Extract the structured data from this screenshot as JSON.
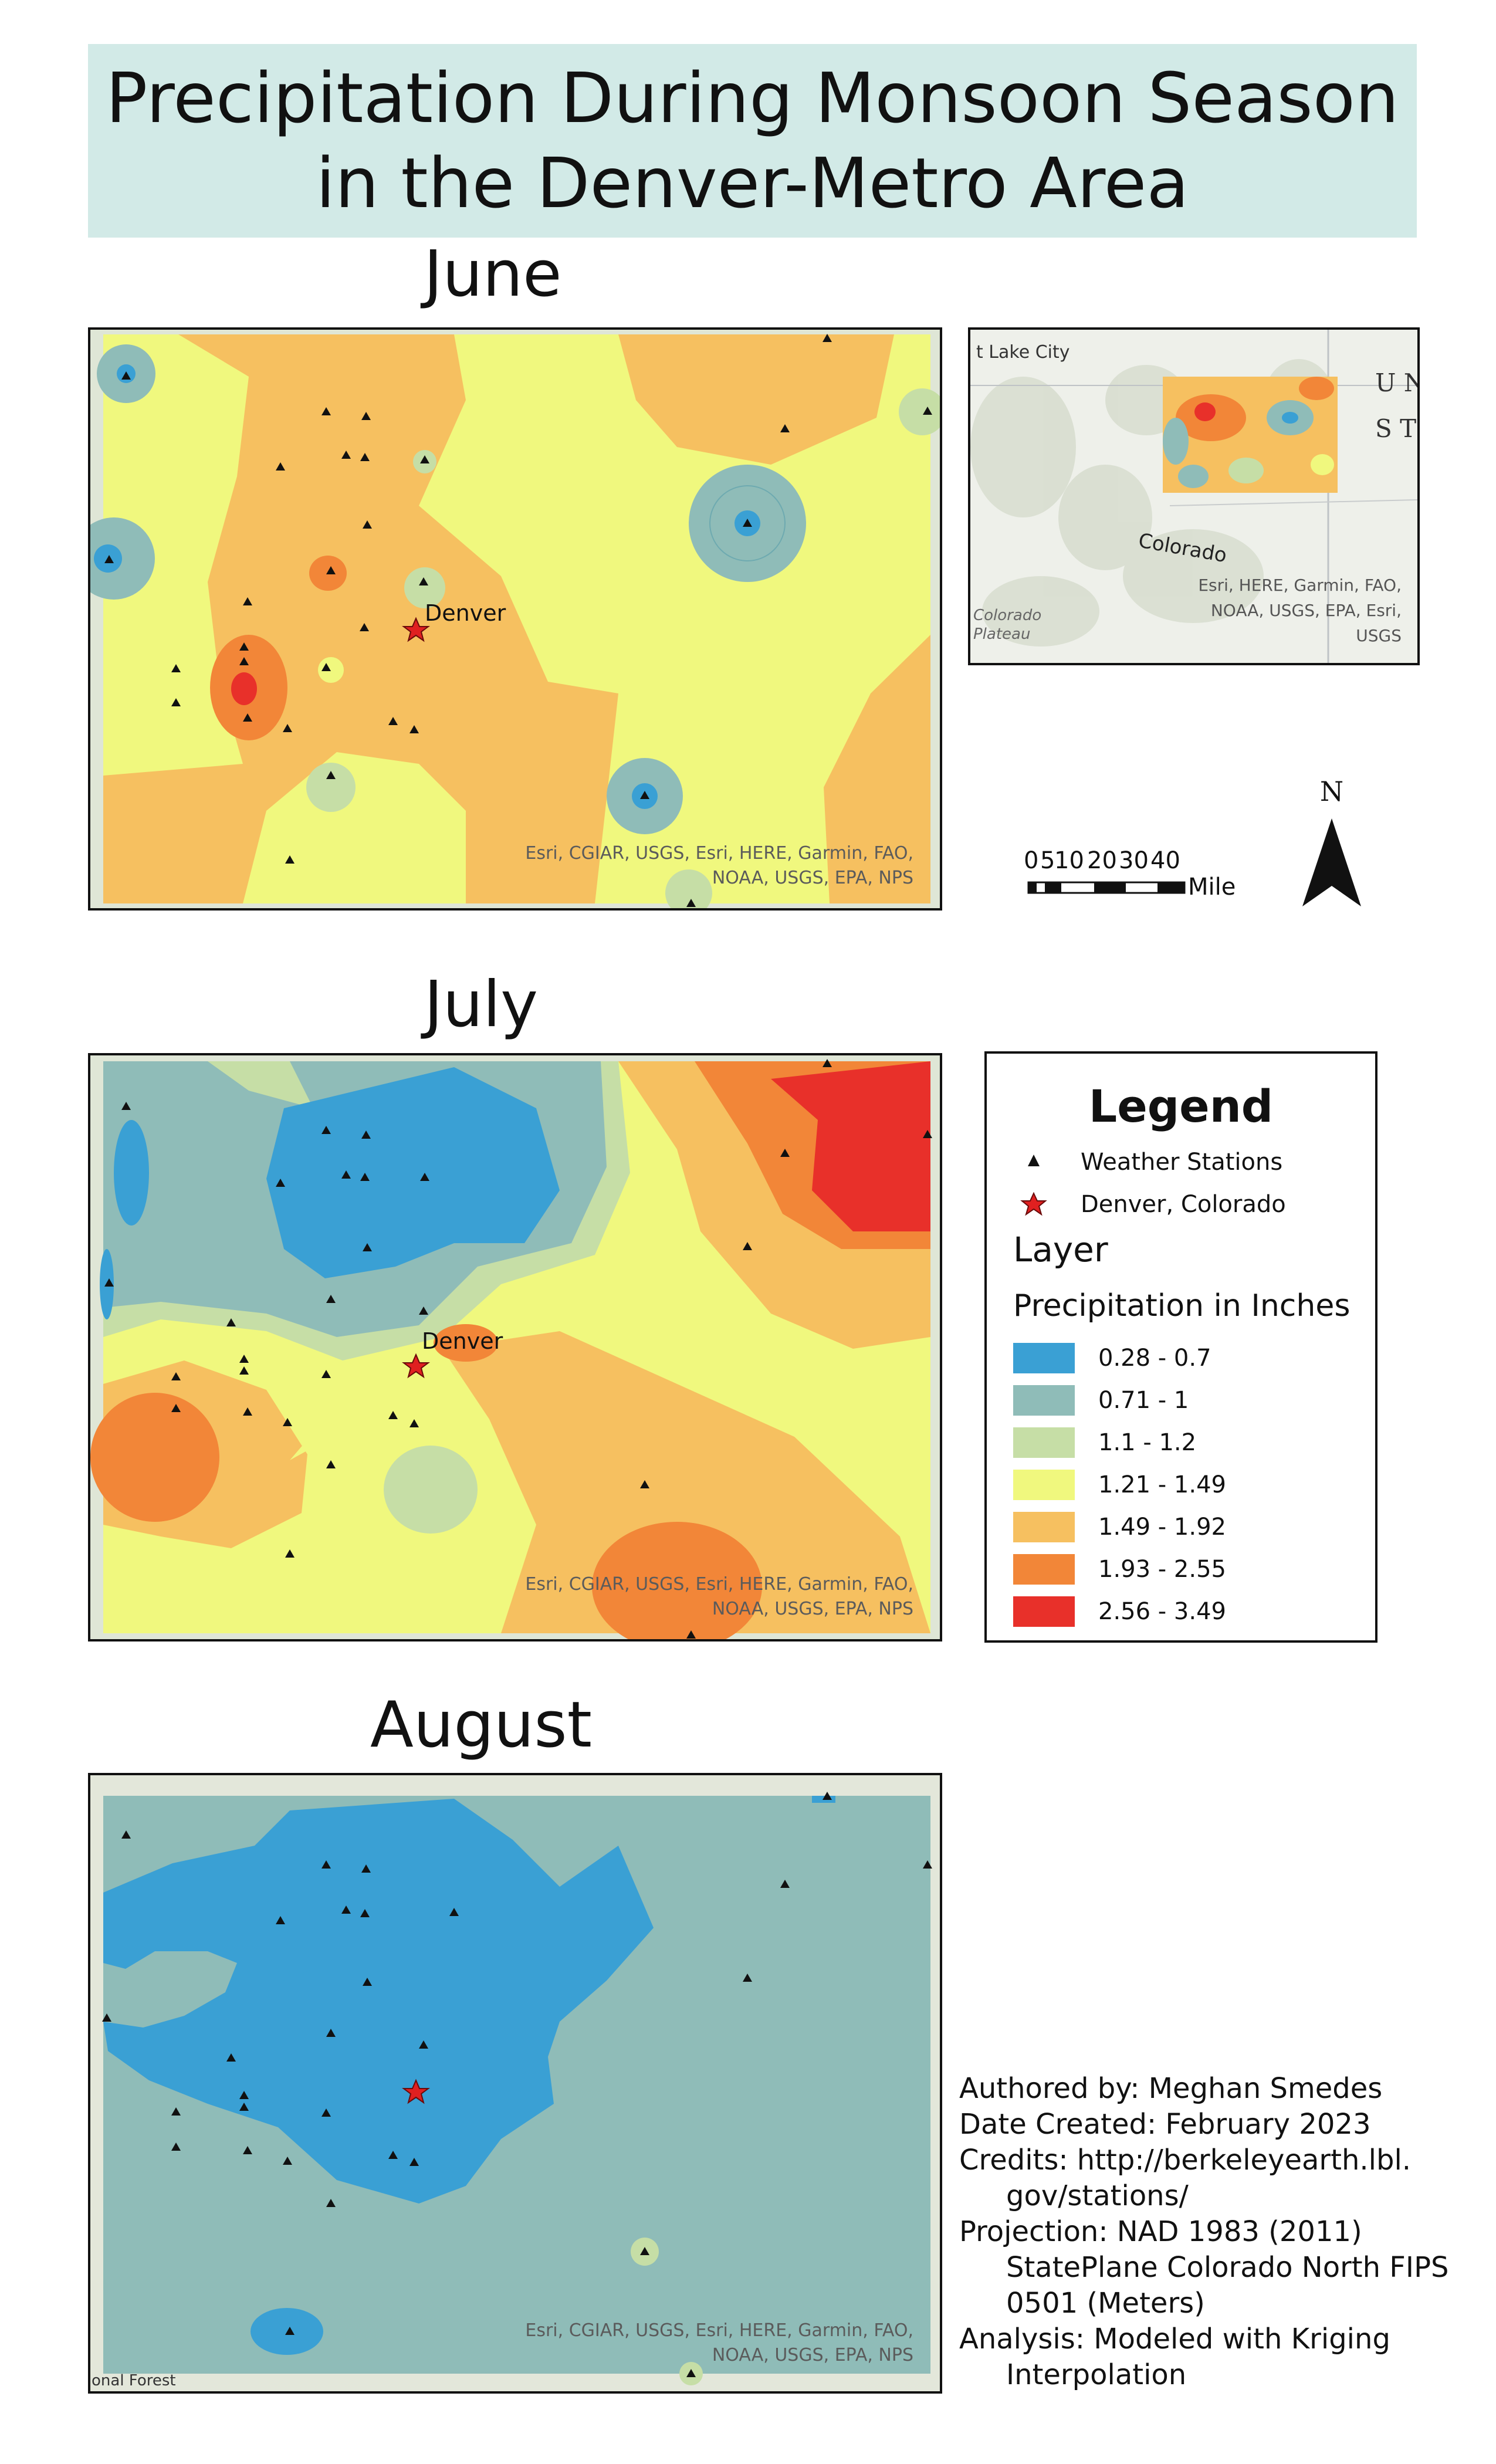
{
  "title": {
    "line1": "Precipitation During Monsoon Season",
    "line2": "in the Denver-Metro Area"
  },
  "maps": {
    "june": {
      "heading": "June"
    },
    "july": {
      "heading": "July"
    },
    "august": {
      "heading": "August"
    },
    "city_label": "Denver",
    "attribution_line1": "Esri, CGIAR, USGS, Esri, HERE, Garmin, FAO,",
    "attribution_line2": "NOAA, USGS, EPA, NPS",
    "august_edge_label": "onal Forest"
  },
  "inset": {
    "place_lake_city": "t Lake City",
    "place_colorado": "Colorado",
    "place_plateau_1": "Colorado",
    "place_plateau_2": "Plateau",
    "edge_letters_1": "U N",
    "edge_letters_2": "S T",
    "attr_line1": "Esri, HERE, Garmin, FAO,",
    "attr_line2": "NOAA, USGS, EPA, Esri,",
    "attr_line3": "USGS"
  },
  "scale": {
    "ticks": [
      "0",
      "5",
      "10",
      "20",
      "30",
      "40"
    ],
    "unit": "Miles"
  },
  "north_arrow": {
    "label": "N"
  },
  "legend": {
    "title": "Legend",
    "stations_label": "Weather Stations",
    "denver_label": "Denver, Colorado",
    "layer_label": "Layer",
    "precip_label": "Precipitation in Inches",
    "classes": [
      {
        "label": "0.28 - 0.7",
        "color": "#3aa0d4"
      },
      {
        "label": "0.71 - 1",
        "color": "#8fbcb8"
      },
      {
        "label": "1.1 - 1.2",
        "color": "#c6dea6"
      },
      {
        "label": "1.21 - 1.49",
        "color": "#f0f87e"
      },
      {
        "label": "1.49 - 1.92",
        "color": "#f6c060"
      },
      {
        "label": "1.93 - 2.55",
        "color": "#f28638"
      },
      {
        "label": "2.56 - 3.49",
        "color": "#e8302a"
      }
    ]
  },
  "credits": {
    "author": "Authored by: Meghan Smedes",
    "date": "Date Created: February 2023",
    "credits_1": "Credits: http://berkeleyearth.lbl.",
    "credits_2": "gov/stations/",
    "projection_1": "Projection: NAD 1983 (2011)",
    "projection_2": "StatePlane Colorado North FIPS",
    "projection_3": "0501 (Meters)",
    "analysis_1": "Analysis: Modeled with Kriging",
    "analysis_2": "Interpolation"
  }
}
